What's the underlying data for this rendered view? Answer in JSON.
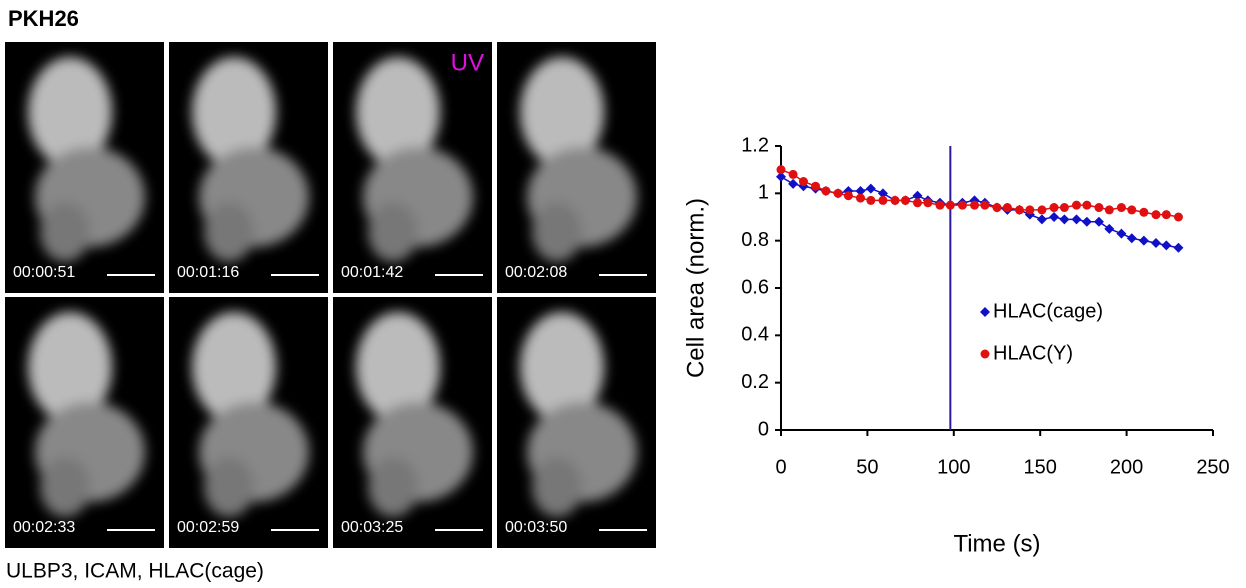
{
  "title": "PKH26",
  "uv_label": "UV",
  "caption": "ULBP3, ICAM, HLAC(cage)",
  "panels": [
    {
      "time": "00:00:51"
    },
    {
      "time": "00:01:16"
    },
    {
      "time": "00:01:42"
    },
    {
      "time": "00:02:08"
    },
    {
      "time": "00:02:33"
    },
    {
      "time": "00:02:59"
    },
    {
      "time": "00:03:25"
    },
    {
      "time": "00:03:50"
    }
  ],
  "chart_data": {
    "type": "line",
    "xlabel": "Time (s)",
    "ylabel": "Cell area (norm.)",
    "x": [
      0,
      7,
      13,
      20,
      26,
      33,
      39,
      46,
      52,
      59,
      66,
      72,
      79,
      85,
      92,
      98,
      105,
      112,
      118,
      125,
      131,
      138,
      144,
      151,
      158,
      164,
      171,
      177,
      184,
      190,
      197,
      203,
      210,
      217,
      223,
      230
    ],
    "series": [
      {
        "name": "HLAC(cage)",
        "color": "#1010c8",
        "marker": "diamond",
        "values": [
          1.07,
          1.04,
          1.03,
          1.02,
          1.01,
          1.0,
          1.01,
          1.01,
          1.02,
          1.0,
          0.97,
          0.97,
          0.99,
          0.97,
          0.96,
          0.95,
          0.96,
          0.97,
          0.96,
          0.94,
          0.93,
          0.93,
          0.91,
          0.89,
          0.9,
          0.89,
          0.89,
          0.88,
          0.88,
          0.85,
          0.83,
          0.81,
          0.8,
          0.79,
          0.78,
          0.77
        ]
      },
      {
        "name": "HLAC(Y)",
        "color": "#e01010",
        "marker": "circle",
        "values": [
          1.1,
          1.08,
          1.05,
          1.03,
          1.01,
          1.0,
          0.99,
          0.98,
          0.97,
          0.97,
          0.97,
          0.97,
          0.96,
          0.96,
          0.95,
          0.95,
          0.95,
          0.95,
          0.95,
          0.94,
          0.94,
          0.93,
          0.93,
          0.93,
          0.94,
          0.94,
          0.95,
          0.95,
          0.94,
          0.93,
          0.94,
          0.93,
          0.92,
          0.91,
          0.91,
          0.9
        ]
      }
    ],
    "marker_x": 98,
    "marker_color": "#2a1aa0",
    "xlim": [
      0,
      250
    ],
    "xticks": [
      0,
      50,
      100,
      150,
      200,
      250
    ],
    "ylim": [
      0,
      1.2
    ],
    "yticks": [
      0,
      0.2,
      0.4,
      0.6,
      0.8,
      1,
      1.2
    ],
    "legend": "center"
  }
}
